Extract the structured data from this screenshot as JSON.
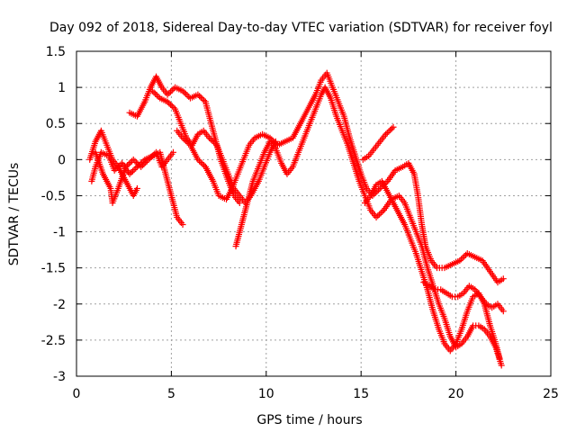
{
  "chart_data": {
    "type": "scatter",
    "title": "Day 092 of 2018, Sidereal Day-to-day VTEC variation (SDTVAR) for receiver foyl",
    "xlabel": "GPS time / hours",
    "ylabel": "SDTVAR / TECUs",
    "xlim": [
      0,
      25
    ],
    "ylim": [
      -3,
      1.5
    ],
    "xticks": [
      "0",
      "5",
      "10",
      "15",
      "20",
      "25"
    ],
    "yticks": [
      "1.5",
      "1",
      "0.5",
      "0",
      "-0.5",
      "-1",
      "-1.5",
      "-2",
      "-2.5",
      "-3"
    ],
    "grid": true,
    "marker": "+",
    "color": "#ff0000",
    "series": [
      {
        "points": [
          [
            0.7,
            0.0
          ],
          [
            1.0,
            0.25
          ],
          [
            1.3,
            0.4
          ],
          [
            1.6,
            0.2
          ],
          [
            1.9,
            0.0
          ],
          [
            2.2,
            -0.1
          ],
          [
            2.6,
            -0.3
          ],
          [
            3.0,
            -0.5
          ],
          [
            3.2,
            -0.4
          ]
        ]
      },
      {
        "points": [
          [
            0.8,
            -0.3
          ],
          [
            1.0,
            -0.1
          ],
          [
            1.3,
            0.1
          ],
          [
            1.7,
            0.05
          ],
          [
            2.0,
            -0.15
          ],
          [
            2.4,
            -0.05
          ],
          [
            2.8,
            -0.2
          ],
          [
            3.2,
            -0.1
          ],
          [
            3.6,
            0.0
          ],
          [
            4.0,
            0.05
          ],
          [
            4.4,
            0.1
          ],
          [
            4.7,
            -0.2
          ],
          [
            5.0,
            -0.5
          ],
          [
            5.3,
            -0.8
          ],
          [
            5.6,
            -0.9
          ]
        ]
      },
      {
        "points": [
          [
            1.0,
            0.1
          ],
          [
            1.4,
            -0.2
          ],
          [
            1.8,
            -0.4
          ],
          [
            1.9,
            -0.6
          ],
          [
            2.2,
            -0.4
          ],
          [
            2.6,
            -0.1
          ],
          [
            3.0,
            0.0
          ],
          [
            3.4,
            -0.1
          ],
          [
            3.8,
            0.0
          ],
          [
            4.2,
            0.1
          ],
          [
            4.5,
            -0.1
          ],
          [
            4.8,
            0.0
          ],
          [
            5.1,
            0.1
          ]
        ]
      },
      {
        "points": [
          [
            2.8,
            0.65
          ],
          [
            3.2,
            0.6
          ],
          [
            3.6,
            0.8
          ],
          [
            3.9,
            1.0
          ],
          [
            4.2,
            1.15
          ],
          [
            4.5,
            1.0
          ],
          [
            4.8,
            0.9
          ],
          [
            5.2,
            1.0
          ],
          [
            5.6,
            0.95
          ],
          [
            6.0,
            0.85
          ],
          [
            6.4,
            0.9
          ],
          [
            6.8,
            0.8
          ],
          [
            7.0,
            0.6
          ],
          [
            7.3,
            0.3
          ],
          [
            7.6,
            0.0
          ],
          [
            8.0,
            -0.3
          ],
          [
            8.3,
            -0.5
          ],
          [
            8.6,
            -0.6
          ]
        ]
      },
      {
        "points": [
          [
            4.0,
            0.95
          ],
          [
            4.4,
            0.85
          ],
          [
            4.8,
            0.8
          ],
          [
            5.2,
            0.7
          ],
          [
            5.5,
            0.5
          ],
          [
            5.8,
            0.3
          ],
          [
            6.1,
            0.2
          ],
          [
            6.4,
            0.35
          ],
          [
            6.7,
            0.4
          ],
          [
            7.0,
            0.3
          ],
          [
            7.4,
            0.2
          ],
          [
            7.7,
            0.0
          ],
          [
            8.0,
            -0.2
          ],
          [
            8.3,
            -0.4
          ],
          [
            8.6,
            -0.5
          ],
          [
            8.9,
            -0.6
          ],
          [
            9.2,
            -0.5
          ],
          [
            9.6,
            -0.3
          ],
          [
            9.9,
            -0.1
          ],
          [
            10.2,
            0.1
          ],
          [
            10.5,
            0.25
          ]
        ]
      },
      {
        "points": [
          [
            5.3,
            0.4
          ],
          [
            5.6,
            0.3
          ],
          [
            6.0,
            0.2
          ],
          [
            6.4,
            0.0
          ],
          [
            6.8,
            -0.1
          ],
          [
            7.2,
            -0.3
          ],
          [
            7.5,
            -0.5
          ],
          [
            7.9,
            -0.55
          ],
          [
            8.2,
            -0.4
          ],
          [
            8.5,
            -0.2
          ],
          [
            8.8,
            0.0
          ],
          [
            9.1,
            0.2
          ],
          [
            9.4,
            0.3
          ],
          [
            9.8,
            0.35
          ],
          [
            10.2,
            0.3
          ],
          [
            10.6,
            0.2
          ],
          [
            11.0,
            0.25
          ],
          [
            11.4,
            0.3
          ],
          [
            11.8,
            0.5
          ],
          [
            12.2,
            0.7
          ],
          [
            12.6,
            0.9
          ],
          [
            12.9,
            1.1
          ],
          [
            13.2,
            1.2
          ],
          [
            13.5,
            1.0
          ],
          [
            13.8,
            0.8
          ],
          [
            14.1,
            0.6
          ],
          [
            14.4,
            0.3
          ],
          [
            14.7,
            0.05
          ],
          [
            15.0,
            -0.2
          ],
          [
            15.3,
            -0.4
          ],
          [
            15.6,
            -0.5
          ],
          [
            16.0,
            -0.4
          ],
          [
            16.4,
            -0.3
          ],
          [
            16.8,
            -0.15
          ],
          [
            17.2,
            -0.1
          ],
          [
            17.5,
            -0.05
          ],
          [
            17.8,
            -0.2
          ],
          [
            18.0,
            -0.5
          ],
          [
            18.2,
            -0.9
          ],
          [
            18.4,
            -1.2
          ],
          [
            18.7,
            -1.4
          ],
          [
            19.0,
            -1.5
          ],
          [
            19.4,
            -1.5
          ],
          [
            19.8,
            -1.45
          ],
          [
            20.2,
            -1.4
          ],
          [
            20.6,
            -1.3
          ],
          [
            21.0,
            -1.35
          ],
          [
            21.4,
            -1.4
          ],
          [
            21.8,
            -1.55
          ],
          [
            22.2,
            -1.7
          ],
          [
            22.5,
            -1.65
          ]
        ]
      },
      {
        "points": [
          [
            8.4,
            -1.2
          ],
          [
            8.7,
            -0.9
          ],
          [
            9.0,
            -0.6
          ],
          [
            9.3,
            -0.3
          ],
          [
            9.6,
            -0.1
          ],
          [
            9.9,
            0.1
          ],
          [
            10.2,
            0.25
          ],
          [
            10.5,
            0.15
          ],
          [
            10.8,
            -0.05
          ],
          [
            11.1,
            -0.2
          ],
          [
            11.4,
            -0.1
          ],
          [
            11.7,
            0.1
          ],
          [
            12.0,
            0.3
          ],
          [
            12.3,
            0.5
          ],
          [
            12.6,
            0.7
          ],
          [
            12.9,
            0.9
          ],
          [
            13.1,
            1.0
          ],
          [
            13.4,
            0.85
          ],
          [
            13.7,
            0.6
          ],
          [
            14.0,
            0.4
          ],
          [
            14.3,
            0.2
          ],
          [
            14.6,
            -0.05
          ],
          [
            14.9,
            -0.3
          ],
          [
            15.2,
            -0.5
          ],
          [
            15.5,
            -0.7
          ],
          [
            15.8,
            -0.8
          ],
          [
            16.2,
            -0.7
          ],
          [
            16.6,
            -0.55
          ],
          [
            17.0,
            -0.5
          ],
          [
            17.3,
            -0.6
          ],
          [
            17.6,
            -0.8
          ],
          [
            17.9,
            -1.0
          ],
          [
            18.2,
            -1.2
          ],
          [
            18.5,
            -1.5
          ],
          [
            18.8,
            -1.75
          ],
          [
            19.1,
            -2.0
          ],
          [
            19.4,
            -2.2
          ],
          [
            19.7,
            -2.45
          ],
          [
            20.0,
            -2.6
          ],
          [
            20.3,
            -2.55
          ],
          [
            20.6,
            -2.45
          ],
          [
            20.9,
            -2.3
          ],
          [
            21.2,
            -2.3
          ],
          [
            21.5,
            -2.35
          ],
          [
            21.8,
            -2.45
          ],
          [
            22.1,
            -2.6
          ],
          [
            22.4,
            -2.85
          ]
        ]
      },
      {
        "points": [
          [
            15.1,
            0.0
          ],
          [
            15.4,
            0.05
          ],
          [
            15.7,
            0.15
          ],
          [
            16.0,
            0.25
          ],
          [
            16.3,
            0.35
          ],
          [
            16.7,
            0.45
          ]
        ]
      },
      {
        "points": [
          [
            15.2,
            -0.6
          ],
          [
            15.5,
            -0.5
          ],
          [
            15.8,
            -0.35
          ],
          [
            16.1,
            -0.3
          ],
          [
            16.4,
            -0.45
          ],
          [
            16.7,
            -0.6
          ],
          [
            17.0,
            -0.75
          ],
          [
            17.3,
            -0.9
          ],
          [
            17.6,
            -1.1
          ],
          [
            17.9,
            -1.3
          ],
          [
            18.2,
            -1.55
          ],
          [
            18.5,
            -1.8
          ],
          [
            18.8,
            -2.1
          ],
          [
            19.1,
            -2.35
          ],
          [
            19.4,
            -2.55
          ],
          [
            19.7,
            -2.65
          ],
          [
            20.0,
            -2.55
          ],
          [
            20.3,
            -2.35
          ],
          [
            20.6,
            -2.1
          ],
          [
            20.9,
            -1.9
          ],
          [
            21.2,
            -1.85
          ],
          [
            21.5,
            -2.0
          ],
          [
            21.8,
            -2.3
          ],
          [
            22.1,
            -2.55
          ],
          [
            22.3,
            -2.75
          ]
        ]
      },
      {
        "points": [
          [
            18.3,
            -1.7
          ],
          [
            18.6,
            -1.75
          ],
          [
            18.9,
            -1.8
          ],
          [
            19.2,
            -1.8
          ],
          [
            19.5,
            -1.85
          ],
          [
            19.8,
            -1.9
          ],
          [
            20.1,
            -1.9
          ],
          [
            20.4,
            -1.85
          ],
          [
            20.7,
            -1.75
          ],
          [
            21.0,
            -1.8
          ],
          [
            21.3,
            -1.9
          ],
          [
            21.6,
            -2.0
          ],
          [
            21.9,
            -2.05
          ],
          [
            22.2,
            -2.0
          ],
          [
            22.5,
            -2.1
          ]
        ]
      }
    ]
  }
}
